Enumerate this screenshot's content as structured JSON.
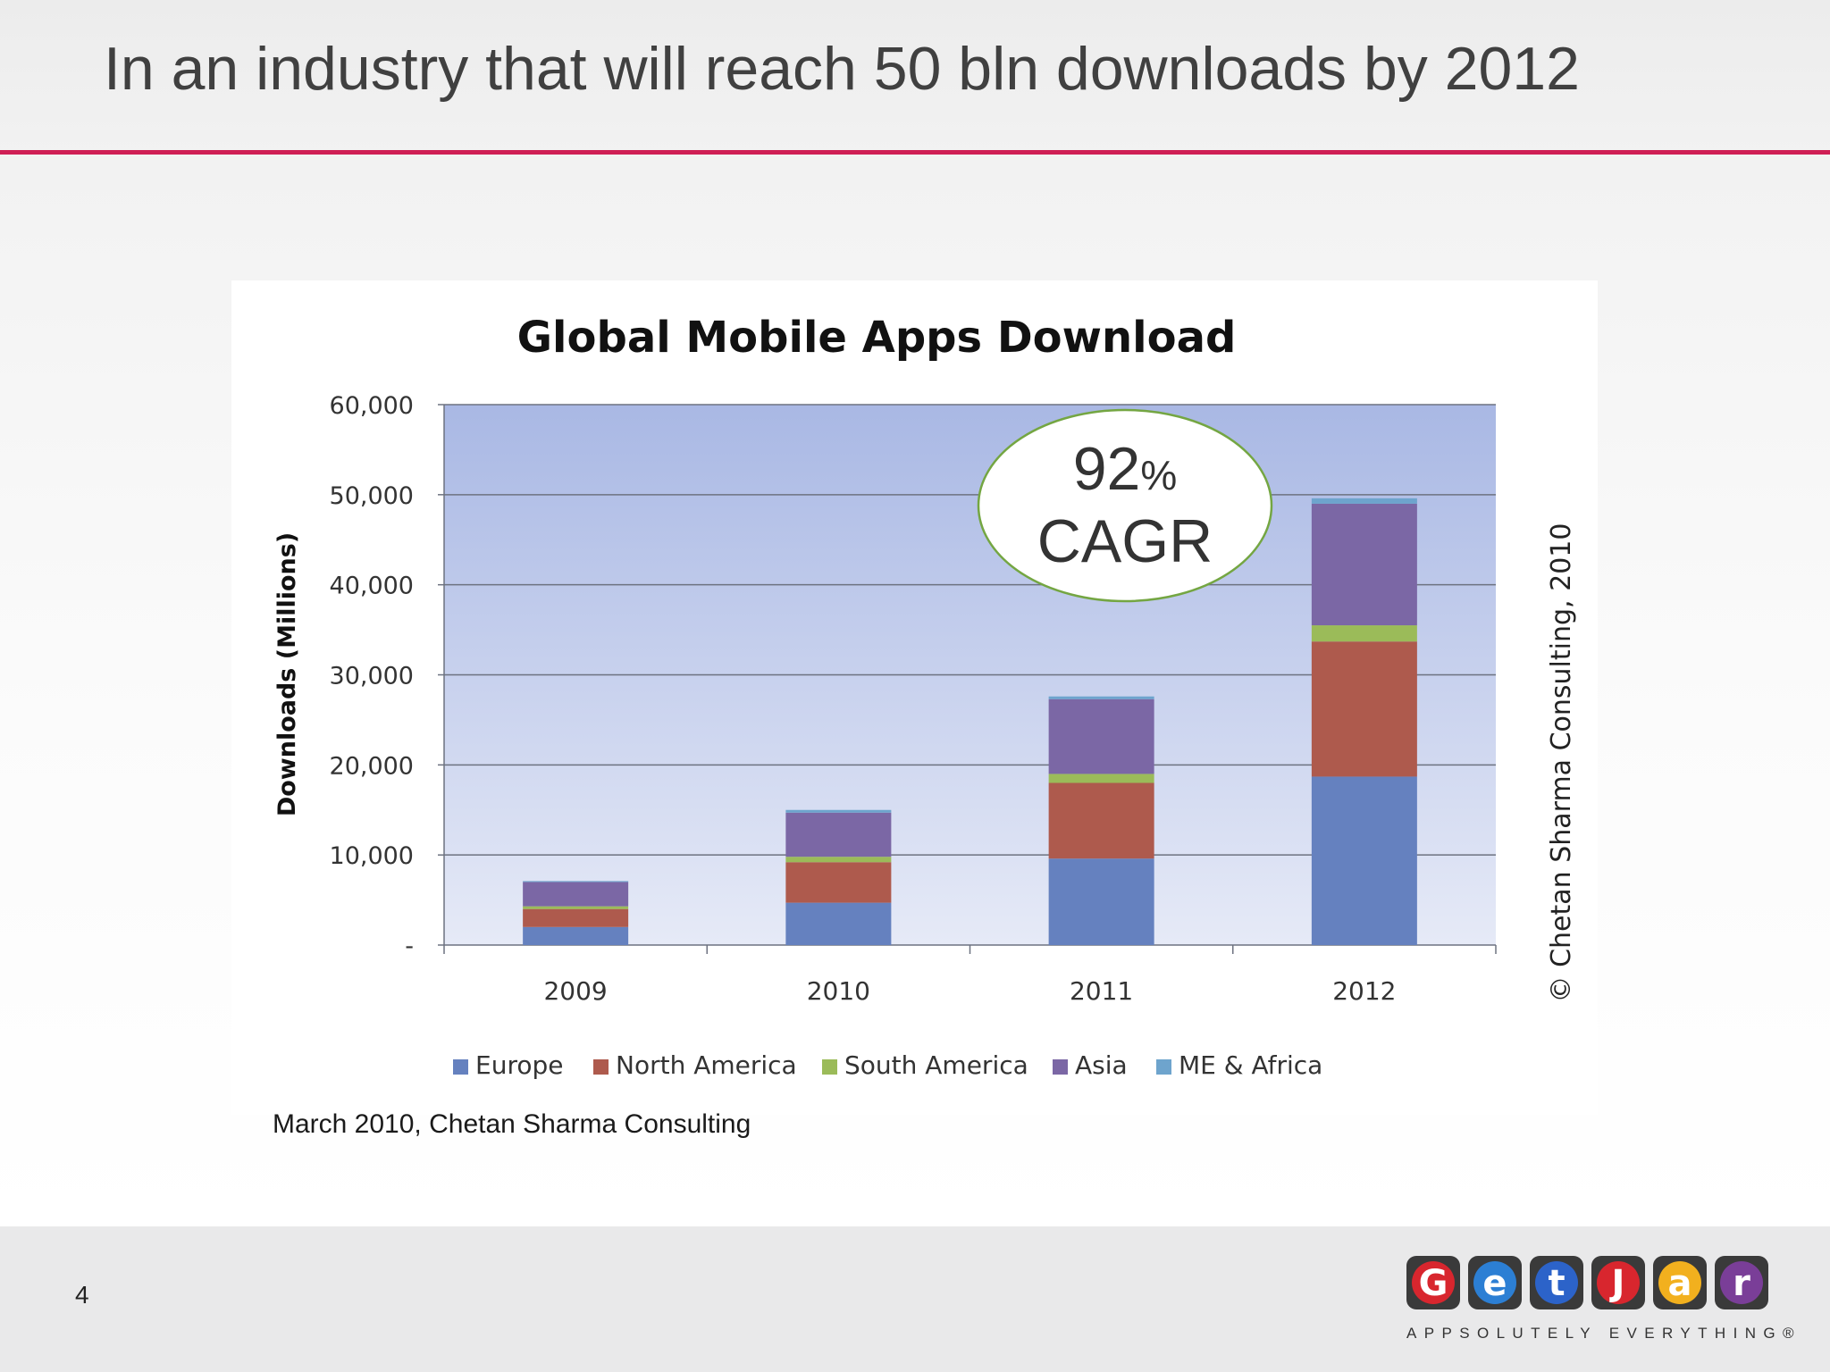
{
  "slide": {
    "title": "In an industry that will reach 50 bln downloads by 2012",
    "source": "March 2010, Chetan Sharma Consulting",
    "page_number": "4",
    "accent_color": "#cf1f55"
  },
  "callout": {
    "value": "92",
    "unit": "%",
    "label": "CAGR"
  },
  "copyright": "© Chetan Sharma Consulting, 2010",
  "logo": {
    "tiles": [
      "G",
      "e",
      "t",
      "J",
      "a",
      "r"
    ],
    "tile_colors": [
      "#d8262e",
      "#2c7fd4",
      "#2c63c9",
      "#d8262e",
      "#f2b01e",
      "#7a3e98"
    ],
    "tagline": "APPSOLUTELY EVERYTHING®"
  },
  "chart_data": {
    "type": "bar",
    "stacked": true,
    "title": "Global Mobile Apps Download",
    "xlabel": "",
    "ylabel": "Downloads (Millions)",
    "ylim": [
      0,
      60000
    ],
    "yticks": [
      0,
      10000,
      20000,
      30000,
      40000,
      50000,
      60000
    ],
    "ytick_labels": [
      "-",
      "10,000",
      "20,000",
      "30,000",
      "40,000",
      "50,000",
      "60,000"
    ],
    "categories": [
      "2009",
      "2010",
      "2011",
      "2012"
    ],
    "grid": true,
    "legend_position": "bottom",
    "series": [
      {
        "name": "Europe",
        "color": "#6581bf",
        "values": [
          2000,
          4700,
          9600,
          18700
        ]
      },
      {
        "name": "North America",
        "color": "#ae5a4d",
        "values": [
          2000,
          4500,
          8400,
          15000
        ]
      },
      {
        "name": "South America",
        "color": "#9bbb59",
        "values": [
          300,
          600,
          1000,
          1800
        ]
      },
      {
        "name": "Asia",
        "color": "#7b67a5",
        "values": [
          2700,
          4900,
          8300,
          13500
        ]
      },
      {
        "name": "ME & Africa",
        "color": "#6ea4cd",
        "values": [
          100,
          300,
          300,
          600
        ]
      }
    ]
  }
}
